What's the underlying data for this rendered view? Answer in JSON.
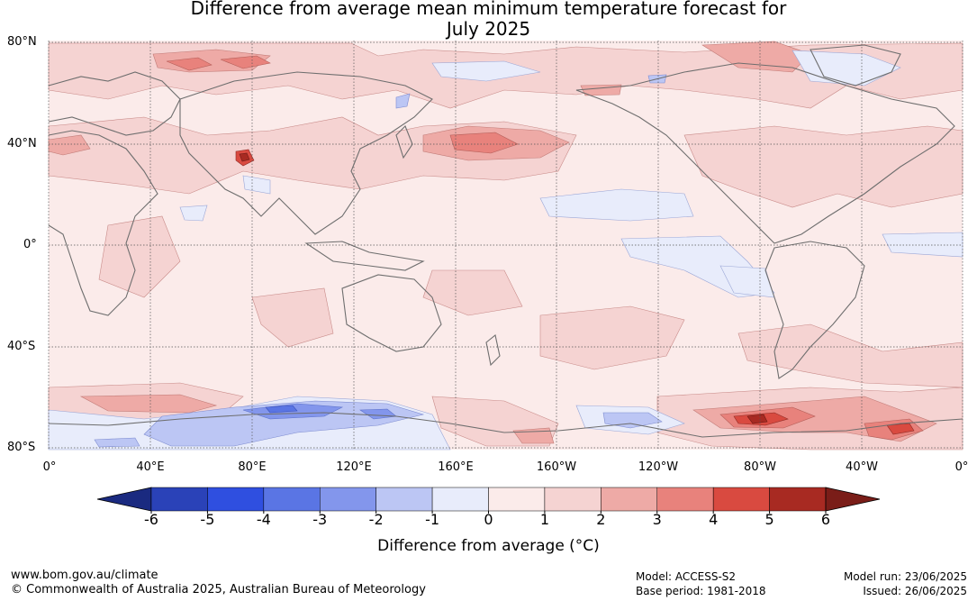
{
  "title": {
    "line1": "Difference from average mean minimum temperature forecast for",
    "line2": "July 2025"
  },
  "map": {
    "lat_labels": [
      "80°N",
      "40°N",
      "0°",
      "40°S",
      "80°S"
    ],
    "lon_labels": [
      "0°",
      "40°E",
      "80°E",
      "120°E",
      "160°E",
      "160°W",
      "120°W",
      "80°W",
      "40°W",
      "0°"
    ],
    "background_color": "#fbebea",
    "coastline_color": "#6e6e6e"
  },
  "colorbar": {
    "ticks": [
      "-6",
      "-5",
      "-4",
      "-3",
      "-2",
      "-1",
      "0",
      "1",
      "2",
      "3",
      "4",
      "5",
      "6"
    ],
    "colors": [
      "#1a2a80",
      "#2a42b8",
      "#2f4fe0",
      "#5a75e4",
      "#8396ec",
      "#bcc6f4",
      "#e8ecfb",
      "#fbebea",
      "#f5d3d2",
      "#eeaaa6",
      "#e8827c",
      "#d94a40",
      "#a82a22",
      "#7a1d18"
    ],
    "label": "Difference from average (°C)"
  },
  "footer": {
    "website": "www.bom.gov.au/climate",
    "copyright": "© Commonwealth of Australia 2025, Australian Bureau of Meteorology",
    "model": "Model: ACCESS-S2",
    "base_period": "Base period: 1981-2018",
    "model_run": "Model run: 23/06/2025",
    "issued": "Issued: 26/06/2025"
  }
}
